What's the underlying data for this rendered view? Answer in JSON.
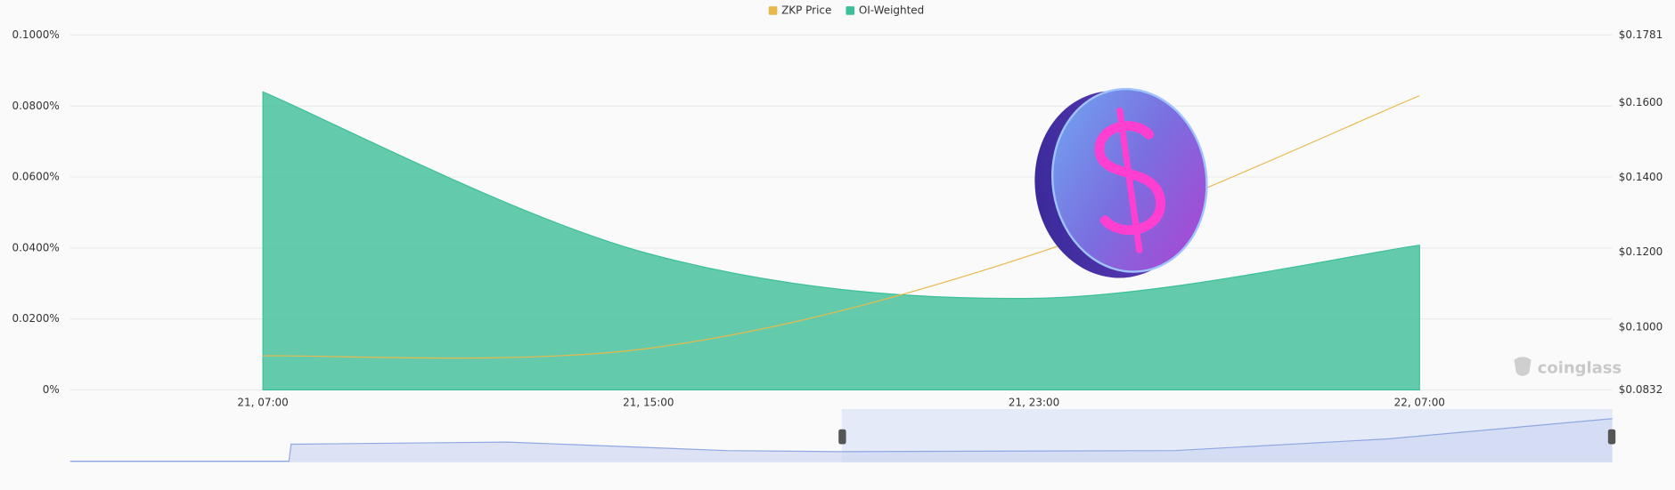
{
  "chart_data": {
    "type": "combo",
    "categories": [
      "21, 07:00",
      "21, 15:00",
      "21, 23:00",
      "22, 07:00"
    ],
    "series": [
      {
        "name": "ZKP Price",
        "type": "line",
        "axis": "y2",
        "color": "#e8b94a",
        "values": [
          0.0923,
          0.0943,
          0.1195,
          0.1619
        ]
      },
      {
        "name": "OI-Weighted",
        "type": "area",
        "axis": "y",
        "color": "#3dbf99",
        "values": [
          0.084,
          0.0384,
          0.0258,
          0.0408
        ]
      }
    ],
    "ylim": [
      0,
      0.1
    ],
    "yticks": [
      {
        "value": 0,
        "label": "0%"
      },
      {
        "value": 0.02,
        "label": "0.0200%"
      },
      {
        "value": 0.04,
        "label": "0.0400%"
      },
      {
        "value": 0.06,
        "label": "0.0600%"
      },
      {
        "value": 0.08,
        "label": "0.0800%"
      },
      {
        "value": 0.1,
        "label": "0.1000%"
      }
    ],
    "y2lim": [
      0.0832,
      0.1781
    ],
    "y2ticks": [
      {
        "value": 0.0832,
        "label": "$0.0832"
      },
      {
        "value": 0.1,
        "label": "$0.1000"
      },
      {
        "value": 0.12,
        "label": "$0.1200"
      },
      {
        "value": 0.14,
        "label": "$0.1400"
      },
      {
        "value": 0.16,
        "label": "$0.1600"
      },
      {
        "value": 0.1781,
        "label": "$0.1781"
      }
    ],
    "grid": true,
    "legend": "top",
    "watermark": "coinglass"
  }
}
